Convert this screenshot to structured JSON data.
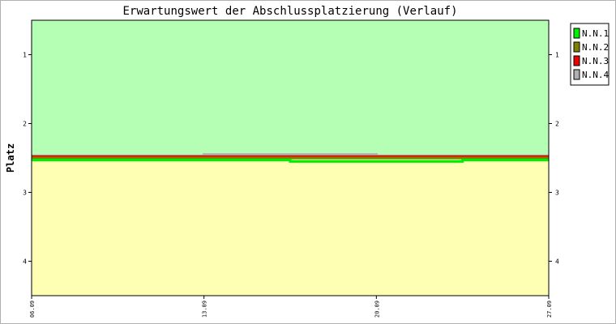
{
  "chart_data": {
    "type": "line",
    "title": "Erwartungswert der Abschlussplatzierung (Verlauf)",
    "ylabel": "Platz",
    "xlabel": "",
    "x_ticks": [
      "06.09",
      "13.09",
      "20.09",
      "27.09"
    ],
    "y_ticks": [
      1,
      2,
      3,
      4
    ],
    "ylim": [
      0.5,
      4.5
    ],
    "y_inverted": true,
    "background_bands": [
      {
        "from": 0.5,
        "to": 2.5,
        "color": "#b4ffb4"
      },
      {
        "from": 2.5,
        "to": 4.5,
        "color": "#ffffb4"
      }
    ],
    "legend_position": "top-right",
    "x": [
      0,
      1,
      2,
      3,
      4,
      5,
      6
    ],
    "series": [
      {
        "name": "N.N.4",
        "color": "#b0b0b0",
        "values": [
          2.47,
          2.47,
          2.45,
          2.45,
          2.47,
          2.47,
          2.47
        ]
      },
      {
        "name": "N.N.3",
        "color": "#ee0000",
        "values": [
          2.48,
          2.48,
          2.48,
          2.48,
          2.48,
          2.48,
          2.48
        ]
      },
      {
        "name": "N.N.2",
        "color": "#808000",
        "values": [
          2.5,
          2.5,
          2.5,
          2.5,
          2.5,
          2.5,
          2.5
        ]
      },
      {
        "name": "N.N.1",
        "color": "#00ee00",
        "values": [
          2.53,
          2.53,
          2.53,
          2.55,
          2.55,
          2.53,
          2.53
        ]
      }
    ]
  }
}
